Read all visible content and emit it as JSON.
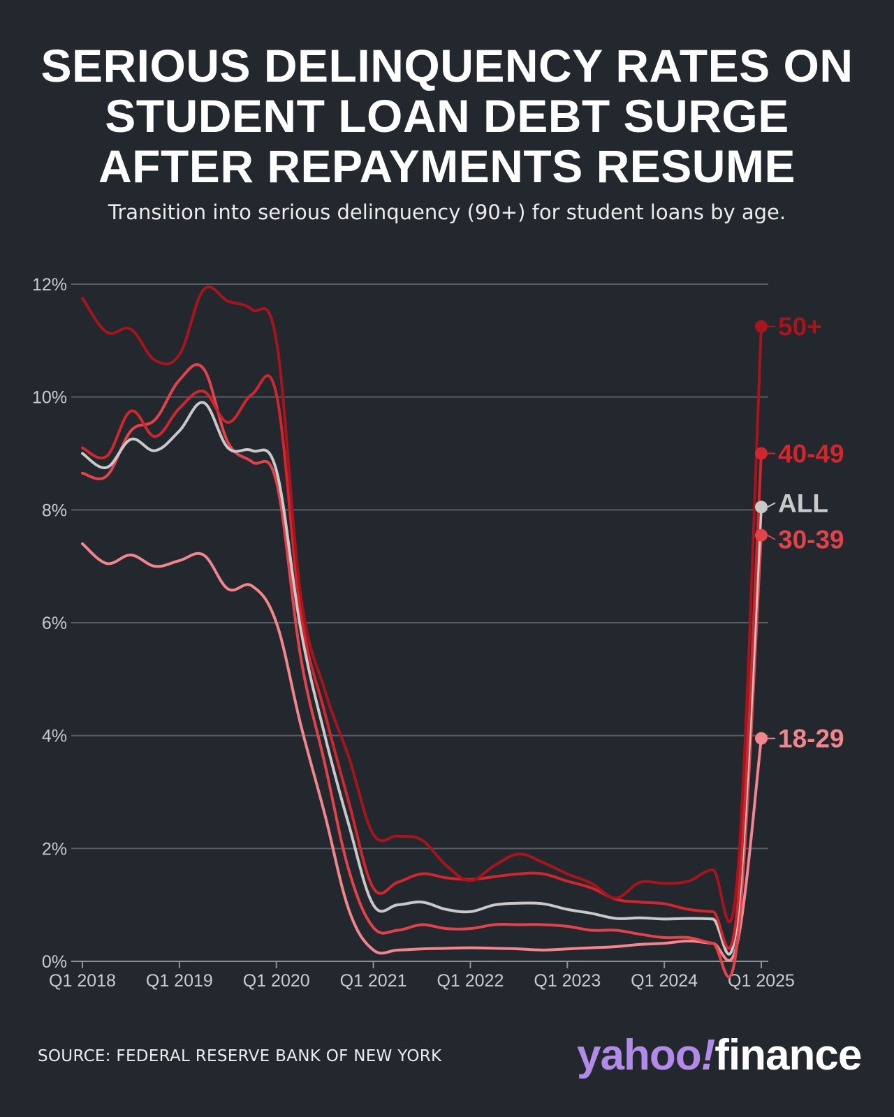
{
  "header": {
    "title": "SERIOUS DELINQUENCY RATES ON STUDENT LOAN DEBT SURGE AFTER REPAYMENTS RESUME",
    "subtitle": "Transition into serious delinquency (90+) for student loans by age."
  },
  "footer": {
    "source": "SOURCE: FEDERAL RESERVE BANK OF NEW YORK",
    "logo_yahoo": "yahoo",
    "logo_bang": "!",
    "logo_finance": "finance"
  },
  "colors": {
    "background": "#23272e",
    "grid": "#585d66",
    "axis_text": "#c9cbcf"
  },
  "chart_data": {
    "type": "line",
    "title": "SERIOUS DELINQUENCY RATES ON STUDENT LOAN DEBT SURGE AFTER REPAYMENTS RESUME",
    "xlabel": "",
    "ylabel": "",
    "x": [
      "Q1 2018",
      "Q2 2018",
      "Q3 2018",
      "Q4 2018",
      "Q1 2019",
      "Q2 2019",
      "Q3 2019",
      "Q4 2019",
      "Q1 2020",
      "Q2 2020",
      "Q3 2020",
      "Q4 2020",
      "Q1 2021",
      "Q2 2021",
      "Q3 2021",
      "Q4 2021",
      "Q1 2022",
      "Q2 2022",
      "Q3 2022",
      "Q4 2022",
      "Q1 2023",
      "Q2 2023",
      "Q3 2023",
      "Q4 2023",
      "Q1 2024",
      "Q2 2024",
      "Q3 2024",
      "Q4 2024",
      "Q1 2025"
    ],
    "x_tick_labels": [
      "Q1 2018",
      "Q1 2019",
      "Q1 2020",
      "Q1 2021",
      "Q1 2022",
      "Q1 2023",
      "Q1 2024",
      "Q1 2025"
    ],
    "x_tick_values": [
      "Q1 2018",
      "Q1 2019",
      "Q1 2020",
      "Q1 2021",
      "Q1 2022",
      "Q1 2023",
      "Q1 2024",
      "Q1 2025"
    ],
    "ylim": [
      0,
      12
    ],
    "y_ticks": [
      0,
      2,
      4,
      6,
      8,
      10,
      12
    ],
    "y_tick_labels": [
      "0%",
      "2%",
      "4%",
      "6%",
      "8%",
      "10%",
      "12%"
    ],
    "grid": true,
    "legend": "direct labels at right end of lines",
    "series": [
      {
        "name": "18-29",
        "color": "#f3868c",
        "values": [
          7.4,
          7.05,
          7.2,
          7.0,
          7.1,
          7.2,
          6.6,
          6.65,
          6.0,
          4.2,
          2.6,
          0.9,
          0.2,
          0.2,
          0.22,
          0.23,
          0.24,
          0.23,
          0.22,
          0.2,
          0.22,
          0.24,
          0.26,
          0.3,
          0.32,
          0.36,
          0.32,
          0.3,
          3.95
        ]
      },
      {
        "name": "30-39",
        "color": "#e2434b",
        "values": [
          8.65,
          8.6,
          9.4,
          9.6,
          10.3,
          10.5,
          9.2,
          8.85,
          8.5,
          5.4,
          3.5,
          1.6,
          0.6,
          0.55,
          0.65,
          0.58,
          0.58,
          0.65,
          0.65,
          0.65,
          0.62,
          0.55,
          0.55,
          0.48,
          0.42,
          0.42,
          0.32,
          0.3,
          7.55
        ]
      },
      {
        "name": "ALL",
        "color": "#c9c9c9",
        "values": [
          9.0,
          8.75,
          9.25,
          9.05,
          9.4,
          9.9,
          9.1,
          9.05,
          8.7,
          5.9,
          4.0,
          2.4,
          1.0,
          1.0,
          1.05,
          0.92,
          0.88,
          1.0,
          1.03,
          1.02,
          0.92,
          0.85,
          0.76,
          0.77,
          0.75,
          0.76,
          0.75,
          0.7,
          8.05
        ]
      },
      {
        "name": "40-49",
        "color": "#d0262d",
        "values": [
          9.1,
          8.95,
          9.75,
          9.3,
          9.8,
          10.1,
          9.55,
          10.05,
          10.05,
          6.2,
          4.4,
          2.8,
          1.3,
          1.4,
          1.55,
          1.48,
          1.45,
          1.5,
          1.55,
          1.55,
          1.42,
          1.3,
          1.1,
          1.05,
          1.02,
          0.92,
          0.88,
          0.88,
          9.0
        ]
      },
      {
        "name": "50+",
        "color": "#a8141c",
        "values": [
          11.75,
          11.15,
          11.2,
          10.65,
          10.75,
          11.9,
          11.7,
          11.55,
          11.0,
          6.5,
          4.8,
          3.6,
          2.25,
          2.22,
          2.15,
          1.7,
          1.43,
          1.7,
          1.9,
          1.75,
          1.55,
          1.38,
          1.12,
          1.4,
          1.38,
          1.42,
          1.62,
          1.42,
          11.25
        ]
      }
    ]
  }
}
